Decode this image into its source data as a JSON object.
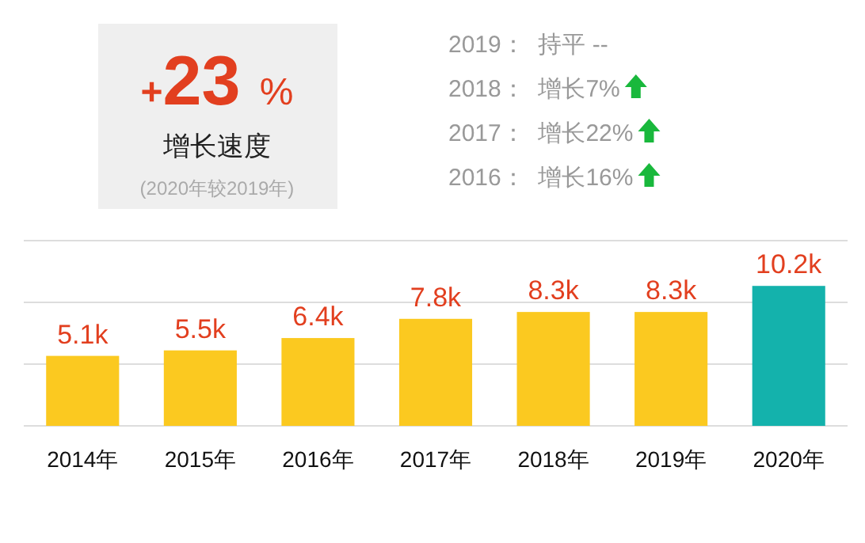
{
  "chart_data": {
    "type": "bar",
    "categories": [
      "2014年",
      "2015年",
      "2016年",
      "2017年",
      "2018年",
      "2019年",
      "2020年"
    ],
    "values": [
      5.1,
      5.5,
      6.4,
      7.8,
      8.3,
      8.3,
      10.2
    ],
    "colors": [
      "#fbc920",
      "#fbc920",
      "#fbc920",
      "#fbc920",
      "#fbc920",
      "#fbc920",
      "#14b2ac"
    ],
    "value_labels": [
      "5.1k",
      "5.5k",
      "6.4k",
      "7.8k",
      "8.3k",
      "8.3k",
      "10.2k"
    ],
    "ylim": [
      0,
      13.5
    ],
    "yticks": [
      {
        "value": 0,
        "label": null
      },
      {
        "value": 4.5,
        "label": null
      },
      {
        "value": 9,
        "label": null
      },
      {
        "value": 13.5,
        "label": null
      }
    ],
    "grid": "y",
    "tick_labels": "x",
    "annotations": [
      "+23 %",
      "增长速度",
      "(2020年较2019年)",
      "2019：  持平 --",
      "2018：  增长7%",
      "2017：  增长22%",
      "2016：  增长16%"
    ]
  }
}
